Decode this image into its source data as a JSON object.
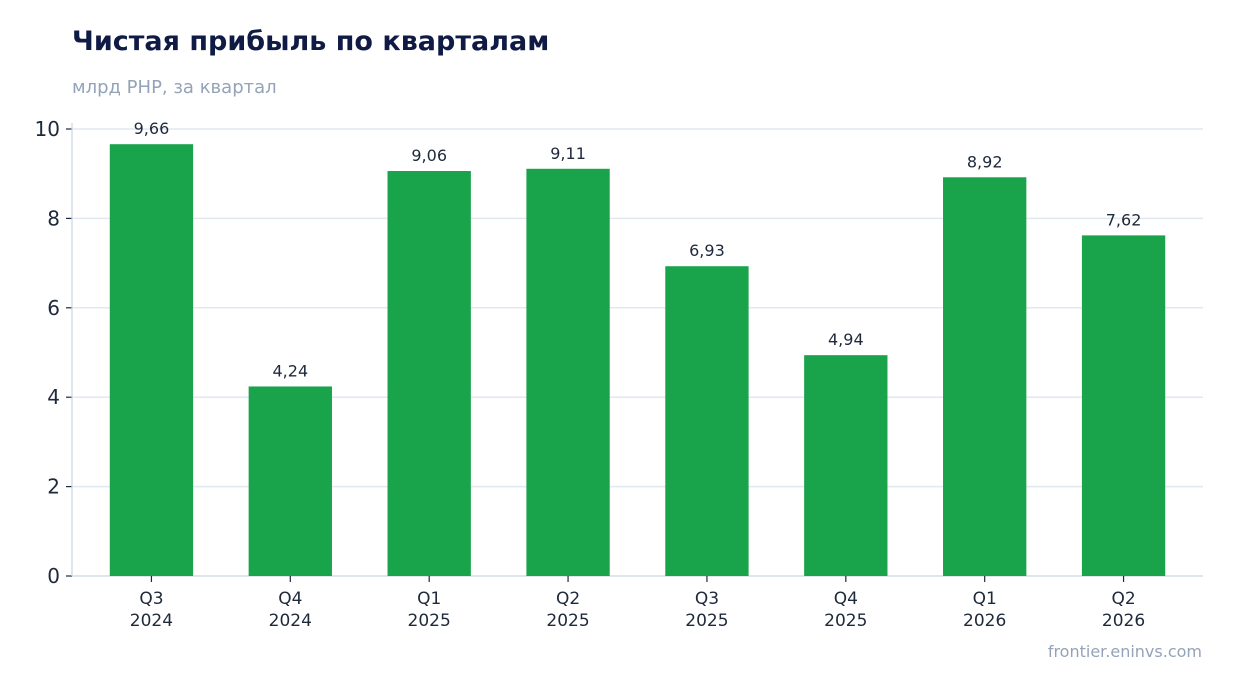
{
  "header": {
    "title": "Чистая прибыль по кварталам",
    "subtitle": "млрд РНР, за квартал"
  },
  "footer": {
    "source": "frontier.eninvs.com"
  },
  "colors": {
    "bar": "#19a34a",
    "grid": "#e2e8f0",
    "axis": "#cbd5e1",
    "tick_text": "#1e293b",
    "label_text": "#1e293b"
  },
  "chart_data": {
    "type": "bar",
    "title": "Чистая прибыль по кварталам",
    "subtitle": "млрд РНР, за квартал",
    "categories": [
      [
        "Q3",
        "2024"
      ],
      [
        "Q4",
        "2024"
      ],
      [
        "Q1",
        "2025"
      ],
      [
        "Q2",
        "2025"
      ],
      [
        "Q3",
        "2025"
      ],
      [
        "Q4",
        "2025"
      ],
      [
        "Q1",
        "2026"
      ],
      [
        "Q2",
        "2026"
      ]
    ],
    "values": [
      9.66,
      4.24,
      9.06,
      9.11,
      6.93,
      4.94,
      8.92,
      7.62
    ],
    "value_labels": [
      "9,66",
      "4,24",
      "9,06",
      "9,11",
      "6,93",
      "4,94",
      "8,92",
      "7,62"
    ],
    "ylim": [
      0,
      10
    ],
    "yticks": [
      0,
      2,
      4,
      6,
      8,
      10
    ],
    "grid": true,
    "legend": "none"
  }
}
